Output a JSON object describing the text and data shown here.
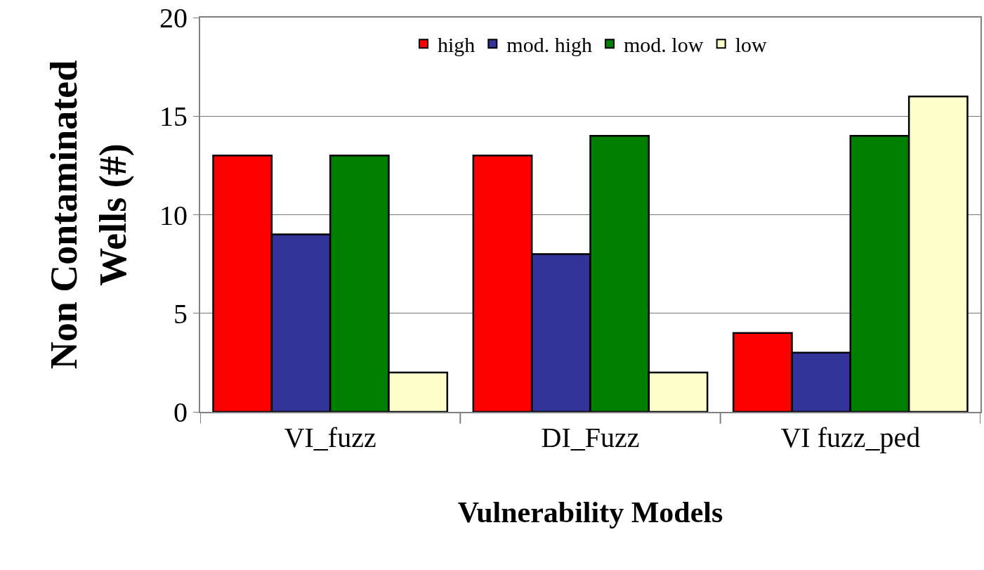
{
  "chart_data": {
    "type": "bar",
    "xlabel": "Vulnerability Models",
    "ylabel": "Non Contaminated\nWells (#)",
    "categories": [
      "VI_fuzz",
      "DI_Fuzz",
      "VI fuzz_ped"
    ],
    "series": [
      {
        "name": "high",
        "color": "#ff0000",
        "values": [
          13,
          13,
          4
        ]
      },
      {
        "name": "mod. high",
        "color": "#333399",
        "values": [
          9,
          8,
          3
        ]
      },
      {
        "name": "mod. low",
        "color": "#008000",
        "values": [
          13,
          14,
          14
        ]
      },
      {
        "name": "low",
        "color": "#ffffcc",
        "values": [
          2,
          2,
          16
        ]
      }
    ],
    "ylim": [
      0,
      20
    ],
    "yticks": [
      0,
      5,
      10,
      15,
      20
    ],
    "grid": "y",
    "legend": "top"
  }
}
